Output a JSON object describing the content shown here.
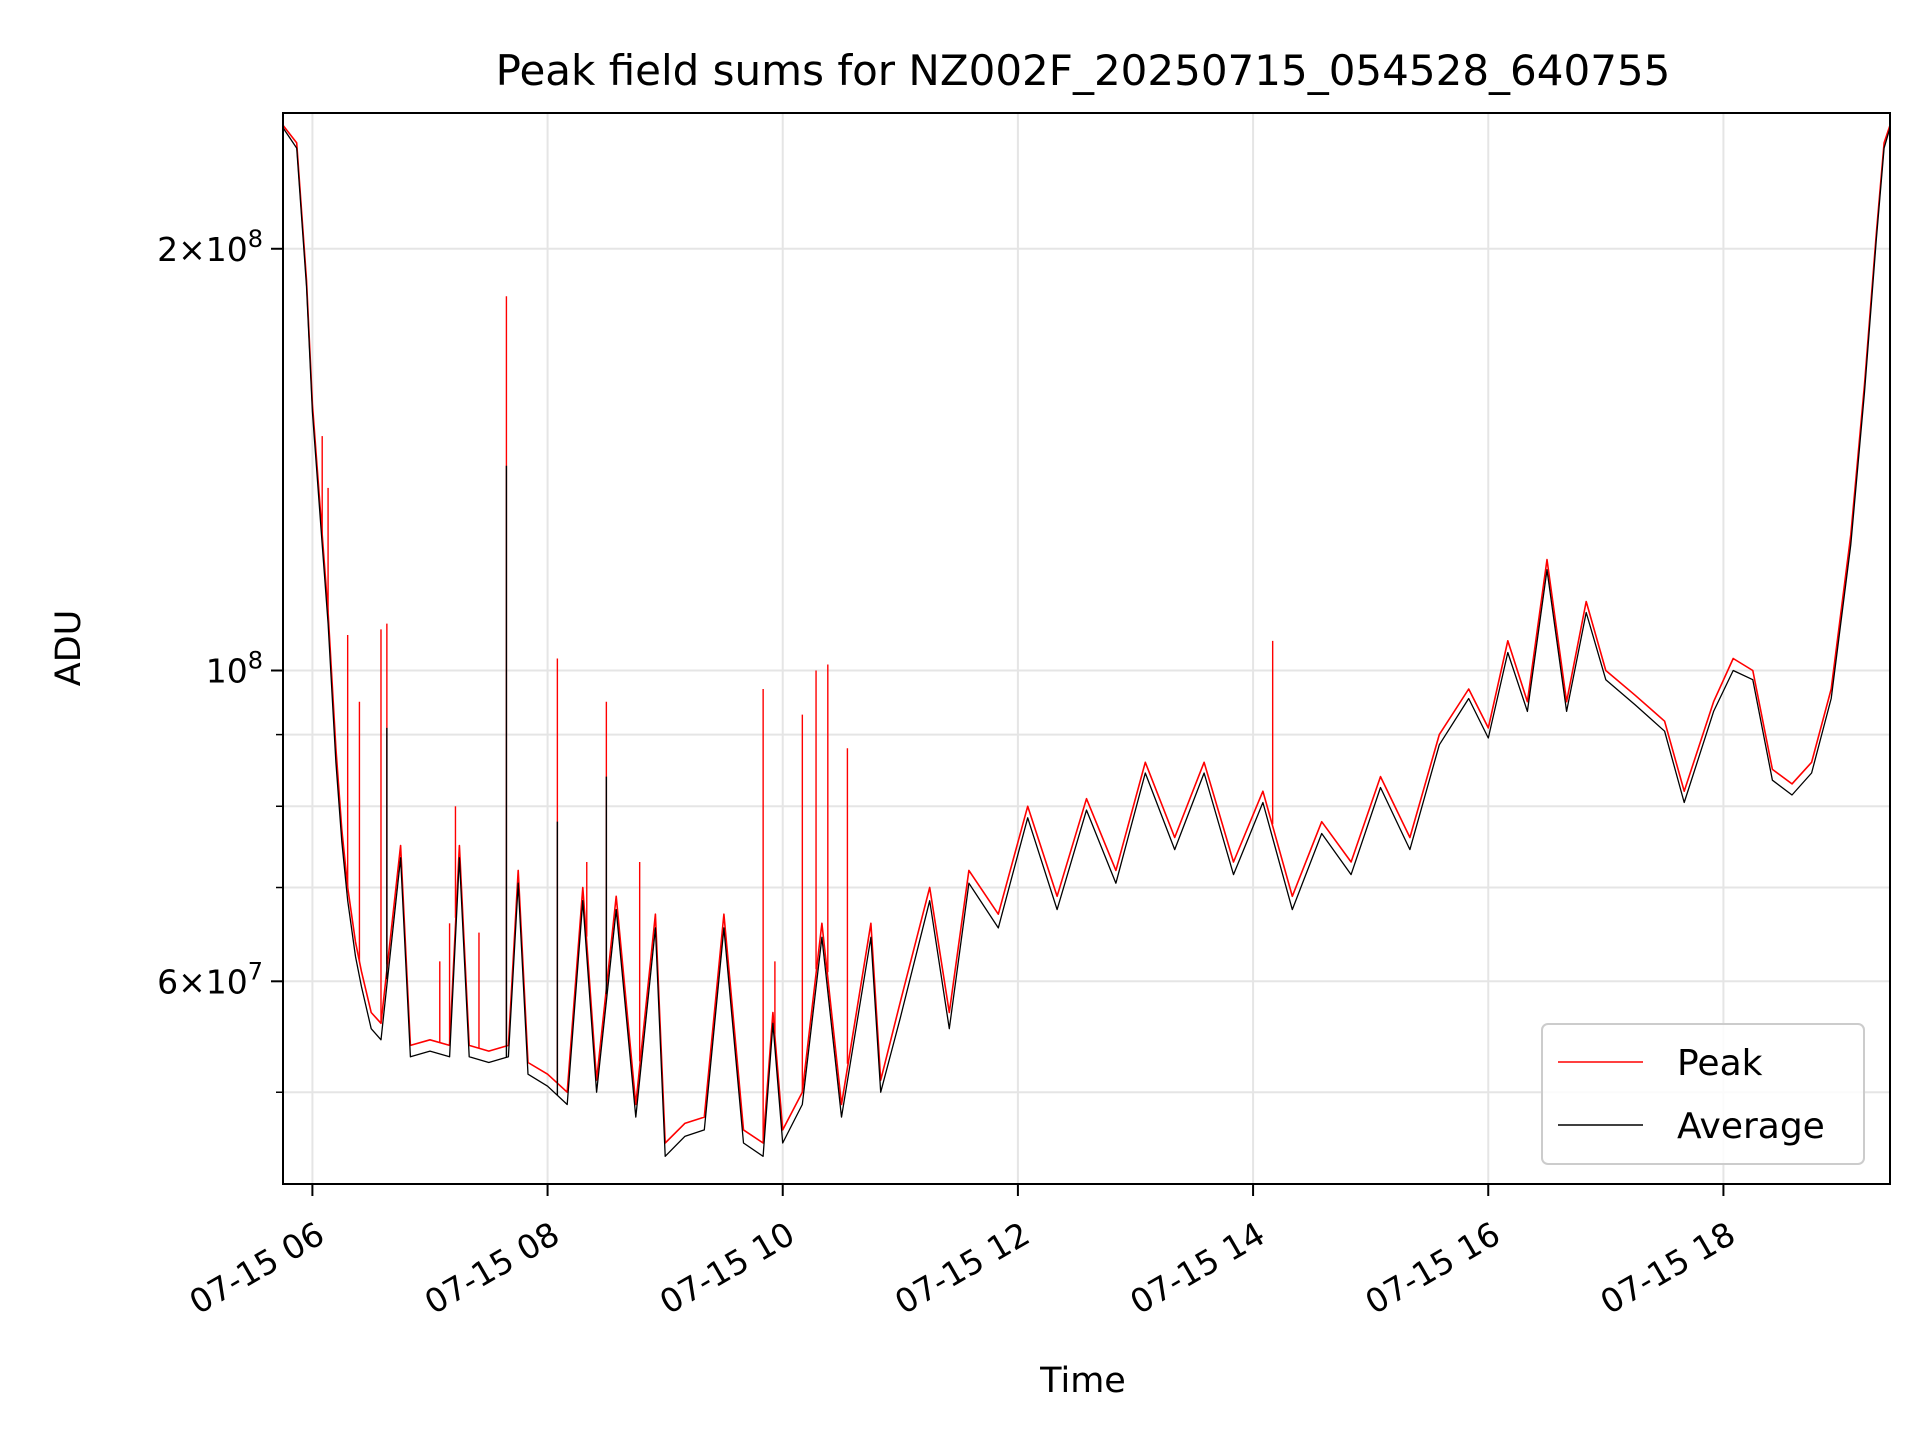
{
  "chart_data": {
    "type": "line",
    "title": "Peak field sums for NZ002F_20250715_054528_640755",
    "xlabel": "Time",
    "ylabel": "ADU",
    "x_range": [
      "2025-07-15T05:45",
      "2025-07-15T19:25"
    ],
    "ylim": [
      43000000,
      250000000
    ],
    "yscale": "log",
    "grid": true,
    "legend_position": "lower right",
    "x_tick_labels": [
      {
        "t": "2025-07-15T06:00",
        "label": "07-15 06"
      },
      {
        "t": "2025-07-15T08:00",
        "label": "07-15 08"
      },
      {
        "t": "2025-07-15T10:00",
        "label": "07-15 10"
      },
      {
        "t": "2025-07-15T12:00",
        "label": "07-15 12"
      },
      {
        "t": "2025-07-15T14:00",
        "label": "07-15 14"
      },
      {
        "t": "2025-07-15T16:00",
        "label": "07-15 16"
      },
      {
        "t": "2025-07-15T18:00",
        "label": "07-15 18"
      }
    ],
    "y_tick_labels": [
      {
        "value": 200000000,
        "mant": "2",
        "exp": "8"
      },
      {
        "value": 100000000,
        "mant": "",
        "exp": "8"
      },
      {
        "value": 60000000,
        "mant": "6",
        "exp": "7"
      }
    ],
    "y_minor_grid": [
      50000000,
      70000000,
      80000000,
      90000000
    ],
    "series": [
      {
        "name": "Peak",
        "color": "#ff0000",
        "points": [
          [
            "2025-07-15T05:45",
            245000000
          ],
          [
            "2025-07-15T05:52",
            238000000
          ],
          [
            "2025-07-15T05:57",
            190000000
          ],
          [
            "2025-07-15T06:00",
            155000000
          ],
          [
            "2025-07-15T06:05",
            125000000
          ],
          [
            "2025-07-15T06:08",
            110000000
          ],
          [
            "2025-07-15T06:12",
            88000000
          ],
          [
            "2025-07-15T06:15",
            77000000
          ],
          [
            "2025-07-15T06:18",
            70000000
          ],
          [
            "2025-07-15T06:22",
            64000000
          ],
          [
            "2025-07-15T06:25",
            61000000
          ],
          [
            "2025-07-15T06:30",
            57000000
          ],
          [
            "2025-07-15T06:35",
            56000000
          ],
          [
            "2025-07-15T06:45",
            75000000
          ],
          [
            "2025-07-15T06:50",
            54000000
          ],
          [
            "2025-07-15T07:00",
            54500000
          ],
          [
            "2025-07-15T07:10",
            54000000
          ],
          [
            "2025-07-15T07:15",
            75000000
          ],
          [
            "2025-07-15T07:20",
            54000000
          ],
          [
            "2025-07-15T07:30",
            53500000
          ],
          [
            "2025-07-15T07:40",
            54000000
          ],
          [
            "2025-07-15T07:45",
            72000000
          ],
          [
            "2025-07-15T07:50",
            52500000
          ],
          [
            "2025-07-15T08:00",
            51500000
          ],
          [
            "2025-07-15T08:10",
            50000000
          ],
          [
            "2025-07-15T08:18",
            70000000
          ],
          [
            "2025-07-15T08:25",
            51000000
          ],
          [
            "2025-07-15T08:35",
            69000000
          ],
          [
            "2025-07-15T08:45",
            49000000
          ],
          [
            "2025-07-15T08:55",
            67000000
          ],
          [
            "2025-07-15T09:00",
            46000000
          ],
          [
            "2025-07-15T09:10",
            47500000
          ],
          [
            "2025-07-15T09:20",
            48000000
          ],
          [
            "2025-07-15T09:30",
            67000000
          ],
          [
            "2025-07-15T09:40",
            47000000
          ],
          [
            "2025-07-15T09:50",
            46000000
          ],
          [
            "2025-07-15T09:55",
            57000000
          ],
          [
            "2025-07-15T10:00",
            47000000
          ],
          [
            "2025-07-15T10:10",
            50000000
          ],
          [
            "2025-07-15T10:20",
            66000000
          ],
          [
            "2025-07-15T10:30",
            49000000
          ],
          [
            "2025-07-15T10:45",
            66000000
          ],
          [
            "2025-07-15T10:50",
            51000000
          ],
          [
            "2025-07-15T11:00",
            58000000
          ],
          [
            "2025-07-15T11:15",
            70000000
          ],
          [
            "2025-07-15T11:25",
            57000000
          ],
          [
            "2025-07-15T11:35",
            72000000
          ],
          [
            "2025-07-15T11:50",
            67000000
          ],
          [
            "2025-07-15T12:05",
            80000000
          ],
          [
            "2025-07-15T12:20",
            69000000
          ],
          [
            "2025-07-15T12:35",
            81000000
          ],
          [
            "2025-07-15T12:50",
            72000000
          ],
          [
            "2025-07-15T13:05",
            86000000
          ],
          [
            "2025-07-15T13:20",
            76000000
          ],
          [
            "2025-07-15T13:35",
            86000000
          ],
          [
            "2025-07-15T13:50",
            73000000
          ],
          [
            "2025-07-15T14:05",
            82000000
          ],
          [
            "2025-07-15T14:20",
            69000000
          ],
          [
            "2025-07-15T14:35",
            78000000
          ],
          [
            "2025-07-15T14:50",
            73000000
          ],
          [
            "2025-07-15T15:05",
            84000000
          ],
          [
            "2025-07-15T15:20",
            76000000
          ],
          [
            "2025-07-15T15:35",
            90000000
          ],
          [
            "2025-07-15T15:50",
            97000000
          ],
          [
            "2025-07-15T16:00",
            91000000
          ],
          [
            "2025-07-15T16:10",
            105000000
          ],
          [
            "2025-07-15T16:20",
            95000000
          ],
          [
            "2025-07-15T16:30",
            120000000
          ],
          [
            "2025-07-15T16:40",
            95000000
          ],
          [
            "2025-07-15T16:50",
            112000000
          ],
          [
            "2025-07-15T17:00",
            100000000
          ],
          [
            "2025-07-15T17:15",
            96000000
          ],
          [
            "2025-07-15T17:30",
            92000000
          ],
          [
            "2025-07-15T17:40",
            82000000
          ],
          [
            "2025-07-15T17:55",
            95000000
          ],
          [
            "2025-07-15T18:05",
            102000000
          ],
          [
            "2025-07-15T18:15",
            100000000
          ],
          [
            "2025-07-15T18:25",
            85000000
          ],
          [
            "2025-07-15T18:35",
            83000000
          ],
          [
            "2025-07-15T18:45",
            86000000
          ],
          [
            "2025-07-15T18:55",
            97000000
          ],
          [
            "2025-07-15T19:05",
            125000000
          ],
          [
            "2025-07-15T19:12",
            160000000
          ],
          [
            "2025-07-15T19:18",
            205000000
          ],
          [
            "2025-07-15T19:22",
            238000000
          ],
          [
            "2025-07-15T19:25",
            245000000
          ]
        ],
        "spikes": [
          [
            "2025-07-15T06:05",
            147000000
          ],
          [
            "2025-07-15T06:08",
            135000000
          ],
          [
            "2025-07-15T06:18",
            106000000
          ],
          [
            "2025-07-15T06:24",
            95000000
          ],
          [
            "2025-07-15T06:35",
            107000000
          ],
          [
            "2025-07-15T06:38",
            108000000
          ],
          [
            "2025-07-15T07:05",
            62000000
          ],
          [
            "2025-07-15T07:10",
            66000000
          ],
          [
            "2025-07-15T07:13",
            80000000
          ],
          [
            "2025-07-15T07:25",
            65000000
          ],
          [
            "2025-07-15T07:39",
            185000000
          ],
          [
            "2025-07-15T08:05",
            102000000
          ],
          [
            "2025-07-15T08:20",
            73000000
          ],
          [
            "2025-07-15T08:30",
            95000000
          ],
          [
            "2025-07-15T08:47",
            73000000
          ],
          [
            "2025-07-15T09:50",
            97000000
          ],
          [
            "2025-07-15T09:56",
            62000000
          ],
          [
            "2025-07-15T10:10",
            93000000
          ],
          [
            "2025-07-15T10:17",
            100000000
          ],
          [
            "2025-07-15T10:23",
            101000000
          ],
          [
            "2025-07-15T10:33",
            88000000
          ],
          [
            "2025-07-15T14:10",
            105000000
          ]
        ]
      },
      {
        "name": "Average",
        "color": "#000000",
        "points": [
          [
            "2025-07-15T05:45",
            244000000
          ],
          [
            "2025-07-15T05:52",
            236000000
          ],
          [
            "2025-07-15T05:57",
            188000000
          ],
          [
            "2025-07-15T06:00",
            153000000
          ],
          [
            "2025-07-15T06:05",
            123000000
          ],
          [
            "2025-07-15T06:08",
            108000000
          ],
          [
            "2025-07-15T06:12",
            86000000
          ],
          [
            "2025-07-15T06:15",
            75500000
          ],
          [
            "2025-07-15T06:18",
            68500000
          ],
          [
            "2025-07-15T06:22",
            62500000
          ],
          [
            "2025-07-15T06:25",
            59500000
          ],
          [
            "2025-07-15T06:30",
            55500000
          ],
          [
            "2025-07-15T06:35",
            54500000
          ],
          [
            "2025-07-15T06:45",
            73500000
          ],
          [
            "2025-07-15T06:50",
            53000000
          ],
          [
            "2025-07-15T07:00",
            53500000
          ],
          [
            "2025-07-15T07:10",
            53000000
          ],
          [
            "2025-07-15T07:15",
            73500000
          ],
          [
            "2025-07-15T07:20",
            53000000
          ],
          [
            "2025-07-15T07:30",
            52500000
          ],
          [
            "2025-07-15T07:40",
            53000000
          ],
          [
            "2025-07-15T07:45",
            70500000
          ],
          [
            "2025-07-15T07:50",
            51500000
          ],
          [
            "2025-07-15T08:00",
            50500000
          ],
          [
            "2025-07-15T08:10",
            49000000
          ],
          [
            "2025-07-15T08:18",
            68500000
          ],
          [
            "2025-07-15T08:25",
            50000000
          ],
          [
            "2025-07-15T08:35",
            67500000
          ],
          [
            "2025-07-15T08:45",
            48000000
          ],
          [
            "2025-07-15T08:55",
            65500000
          ],
          [
            "2025-07-15T09:00",
            45000000
          ],
          [
            "2025-07-15T09:10",
            46500000
          ],
          [
            "2025-07-15T09:20",
            47000000
          ],
          [
            "2025-07-15T09:30",
            65500000
          ],
          [
            "2025-07-15T09:40",
            46000000
          ],
          [
            "2025-07-15T09:50",
            45000000
          ],
          [
            "2025-07-15T09:55",
            56000000
          ],
          [
            "2025-07-15T10:00",
            46000000
          ],
          [
            "2025-07-15T10:10",
            49000000
          ],
          [
            "2025-07-15T10:20",
            64500000
          ],
          [
            "2025-07-15T10:30",
            48000000
          ],
          [
            "2025-07-15T10:45",
            64500000
          ],
          [
            "2025-07-15T10:50",
            50000000
          ],
          [
            "2025-07-15T11:00",
            56500000
          ],
          [
            "2025-07-15T11:15",
            68500000
          ],
          [
            "2025-07-15T11:25",
            55500000
          ],
          [
            "2025-07-15T11:35",
            70500000
          ],
          [
            "2025-07-15T11:50",
            65500000
          ],
          [
            "2025-07-15T12:05",
            78500000
          ],
          [
            "2025-07-15T12:20",
            67500000
          ],
          [
            "2025-07-15T12:35",
            79500000
          ],
          [
            "2025-07-15T12:50",
            70500000
          ],
          [
            "2025-07-15T13:05",
            84500000
          ],
          [
            "2025-07-15T13:20",
            74500000
          ],
          [
            "2025-07-15T13:35",
            84500000
          ],
          [
            "2025-07-15T13:50",
            71500000
          ],
          [
            "2025-07-15T14:05",
            80500000
          ],
          [
            "2025-07-15T14:20",
            67500000
          ],
          [
            "2025-07-15T14:35",
            76500000
          ],
          [
            "2025-07-15T14:50",
            71500000
          ],
          [
            "2025-07-15T15:05",
            82500000
          ],
          [
            "2025-07-15T15:20",
            74500000
          ],
          [
            "2025-07-15T15:35",
            88500000
          ],
          [
            "2025-07-15T15:50",
            95500000
          ],
          [
            "2025-07-15T16:00",
            89500000
          ],
          [
            "2025-07-15T16:10",
            103000000
          ],
          [
            "2025-07-15T16:20",
            93500000
          ],
          [
            "2025-07-15T16:30",
            118000000
          ],
          [
            "2025-07-15T16:40",
            93500000
          ],
          [
            "2025-07-15T16:50",
            110000000
          ],
          [
            "2025-07-15T17:00",
            98500000
          ],
          [
            "2025-07-15T17:15",
            94500000
          ],
          [
            "2025-07-15T17:30",
            90500000
          ],
          [
            "2025-07-15T17:40",
            80500000
          ],
          [
            "2025-07-15T17:55",
            93500000
          ],
          [
            "2025-07-15T18:05",
            100000000
          ],
          [
            "2025-07-15T18:15",
            98500000
          ],
          [
            "2025-07-15T18:25",
            83500000
          ],
          [
            "2025-07-15T18:35",
            81500000
          ],
          [
            "2025-07-15T18:45",
            84500000
          ],
          [
            "2025-07-15T18:55",
            95500000
          ],
          [
            "2025-07-15T19:05",
            123000000
          ],
          [
            "2025-07-15T19:12",
            158000000
          ],
          [
            "2025-07-15T19:18",
            203000000
          ],
          [
            "2025-07-15T19:22",
            236000000
          ],
          [
            "2025-07-15T19:25",
            244000000
          ]
        ],
        "spikes": [
          [
            "2025-07-15T06:38",
            91000000
          ],
          [
            "2025-07-15T07:39",
            140000000
          ],
          [
            "2025-07-15T08:05",
            78000000
          ],
          [
            "2025-07-15T08:30",
            84000000
          ]
        ]
      }
    ]
  }
}
